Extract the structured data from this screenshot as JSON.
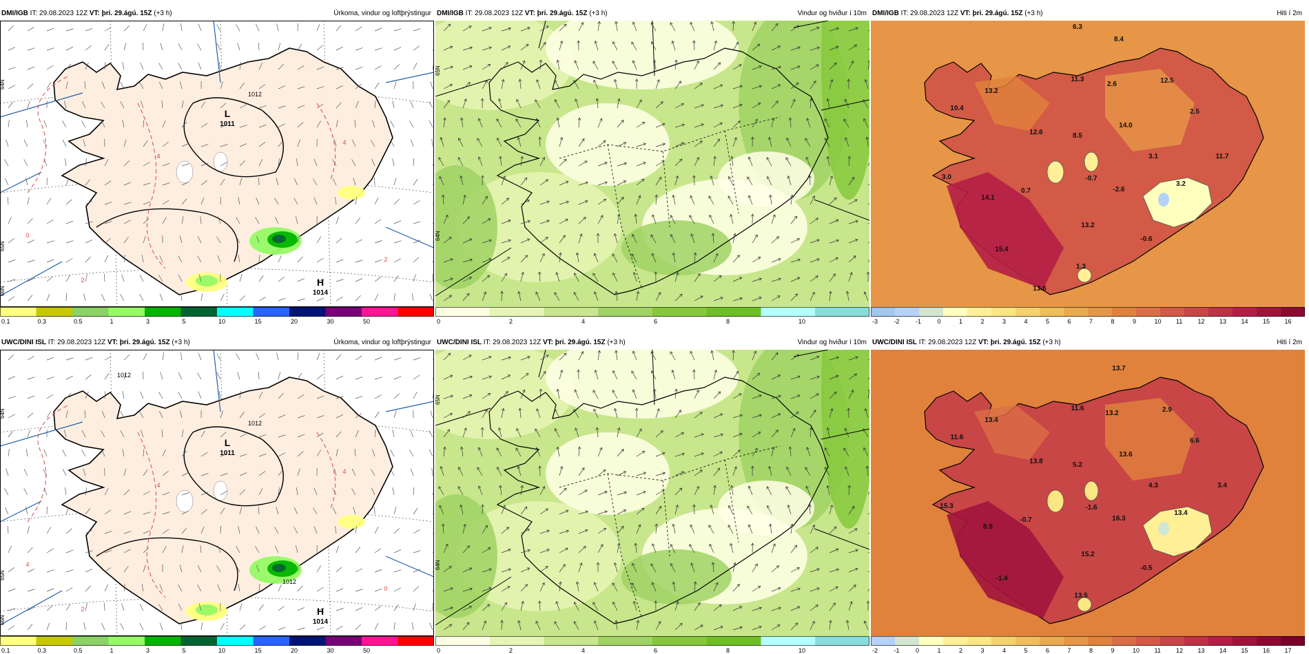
{
  "rows": [
    {
      "model": "DMI/IGB",
      "panels": [
        {
          "it_label": "IT: 29.08.2023 12Z",
          "vt_label": "VT: þri. 29.ágú. 15Z",
          "offset": "(+3 h)",
          "field": "Úrkoma, vindur og loftþrýstingur",
          "kind": "precip",
          "lat_labels": [
            "65N",
            "64N",
            "66N"
          ],
          "pressure_centers": [
            {
              "type": "L",
              "value": "1011"
            },
            {
              "type": "H",
              "value": "1014"
            }
          ],
          "isobar_labels": [
            "1012"
          ],
          "temp_contour_labels": [
            "0",
            "2",
            "4",
            "4",
            "2"
          ],
          "colorbar": {
            "colors": [
              "#ffff80",
              "#c8c800",
              "#8cd264",
              "#96fa64",
              "#00b400",
              "#006432",
              "#00ffff",
              "#2864ff",
              "#001478",
              "#780078",
              "#ff1493",
              "#ff0000"
            ],
            "ticks": [
              "0.1",
              "0.3",
              "0.5",
              "1",
              "3",
              "5",
              "10",
              "15",
              "20",
              "30",
              "50"
            ]
          }
        },
        {
          "it_label": "IT: 29.08.2023 12Z",
          "vt_label": "VT: þri. 29.ágú. 15Z",
          "offset": "(+3 h)",
          "field": "Vindur og hviður í 10m",
          "kind": "wind",
          "lat_labels": [
            "65N",
            "64N"
          ],
          "colorbar": {
            "colors": [
              "#ffffe6",
              "#e6f5b4",
              "#c8e68c",
              "#a0d264",
              "#86c83c",
              "#6ebe28",
              "#b4ffff",
              "#87dcdc"
            ],
            "ticks": [
              "0",
              "2",
              "4",
              "6",
              "8",
              "10"
            ]
          }
        },
        {
          "it_label": "IT: 29.08.2023 12Z",
          "vt_label": "VT: þri. 29.ágú. 15Z",
          "offset": "(+3 h)",
          "field": "Hiti í 2m",
          "kind": "temp",
          "values": [
            "8.4",
            "13.2",
            "10.4",
            "11.3",
            "2.6",
            "12.5",
            "14.0",
            "2.5",
            "12.6",
            "8.5",
            "3.1",
            "11.7",
            "3.0",
            "0.7",
            "-0.7",
            "-2.6",
            "3.2",
            "14.1",
            "13.2",
            "-0.6",
            "15.4",
            "1.3",
            "13.6",
            "6.3"
          ],
          "colorbar": {
            "colors": [
              "#a0c8f0",
              "#b4d2fa",
              "#d2e6d2",
              "#ffffbe",
              "#fff096",
              "#fae682",
              "#f5d26e",
              "#f0be5a",
              "#ebaa50",
              "#e69646",
              "#e1823c",
              "#dc6e46",
              "#d25a46",
              "#c84646",
              "#be3246",
              "#b41e46",
              "#a0143c",
              "#8c0a32"
            ],
            "ticks": [
              "-3",
              "-2",
              "-1",
              "0",
              "1",
              "2",
              "3",
              "4",
              "5",
              "6",
              "7",
              "8",
              "9",
              "10",
              "11",
              "12",
              "13",
              "14",
              "15",
              "16"
            ]
          }
        }
      ]
    },
    {
      "model": "UWC/DINI ISL",
      "panels": [
        {
          "it_label": "IT: 29.08.2023 12Z",
          "vt_label": "VT: þri. 29.ágú. 15Z",
          "offset": "(+3 h)",
          "field": "Úrkoma, vindur og loftþrýstingur",
          "kind": "precip",
          "lat_labels": [
            "65N",
            "64N",
            "66N"
          ],
          "pressure_centers": [
            {
              "type": "L",
              "value": "1011"
            },
            {
              "type": "H",
              "value": "1014"
            }
          ],
          "isobar_labels": [
            "1012",
            "1012",
            "1012"
          ],
          "temp_contour_labels": [
            "4",
            "2",
            "4",
            "4",
            "0"
          ],
          "colorbar": {
            "colors": [
              "#ffff80",
              "#c8c800",
              "#8cd264",
              "#96fa64",
              "#00b400",
              "#006432",
              "#00ffff",
              "#2864ff",
              "#001478",
              "#780078",
              "#ff1493",
              "#ff0000"
            ],
            "ticks": [
              "0.1",
              "0.3",
              "0.5",
              "1",
              "3",
              "5",
              "10",
              "15",
              "20",
              "30",
              "50"
            ]
          }
        },
        {
          "it_label": "IT: 29.08.2023 12Z",
          "vt_label": "VT: þri. 29.ágú. 15Z",
          "offset": "(+3 h)",
          "field": "Vindur og hviður í 10m",
          "kind": "wind",
          "lat_labels": [
            "65N",
            "64N"
          ],
          "colorbar": {
            "colors": [
              "#ffffe6",
              "#e6f5b4",
              "#c8e68c",
              "#a0d264",
              "#86c83c",
              "#6ebe28",
              "#b4ffff",
              "#87dcdc"
            ],
            "ticks": [
              "0",
              "2",
              "4",
              "6",
              "8",
              "10"
            ]
          }
        },
        {
          "it_label": "IT: 29.08.2023 12Z",
          "vt_label": "VT: þri. 29.ágú. 15Z",
          "offset": "(+3 h)",
          "field": "Hiti í 2m",
          "kind": "temp",
          "values": [
            "13.7",
            "13.4",
            "11.6",
            "11.6",
            "13.2",
            "2.9",
            "13.6",
            "6.6",
            "13.8",
            "5.2",
            "4.3",
            "3.4",
            "15.3",
            "-0.7",
            "-1.6",
            "16.3",
            "13.4",
            "8.9",
            "15.2",
            "-0.5",
            "-1.4",
            "13.5"
          ],
          "colorbar": {
            "colors": [
              "#b4d2fa",
              "#d2e6d2",
              "#ffffbe",
              "#fff096",
              "#fae682",
              "#f5d26e",
              "#f0be5a",
              "#ebaa50",
              "#e69646",
              "#e1823c",
              "#dc6e46",
              "#d25a46",
              "#c84646",
              "#be3246",
              "#b41e46",
              "#a0143c",
              "#8c0a32",
              "#780028"
            ],
            "ticks": [
              "-2",
              "-1",
              "0",
              "1",
              "2",
              "3",
              "4",
              "5",
              "6",
              "7",
              "8",
              "9",
              "10",
              "11",
              "12",
              "13",
              "14",
              "15",
              "16",
              "17"
            ]
          }
        }
      ]
    }
  ]
}
